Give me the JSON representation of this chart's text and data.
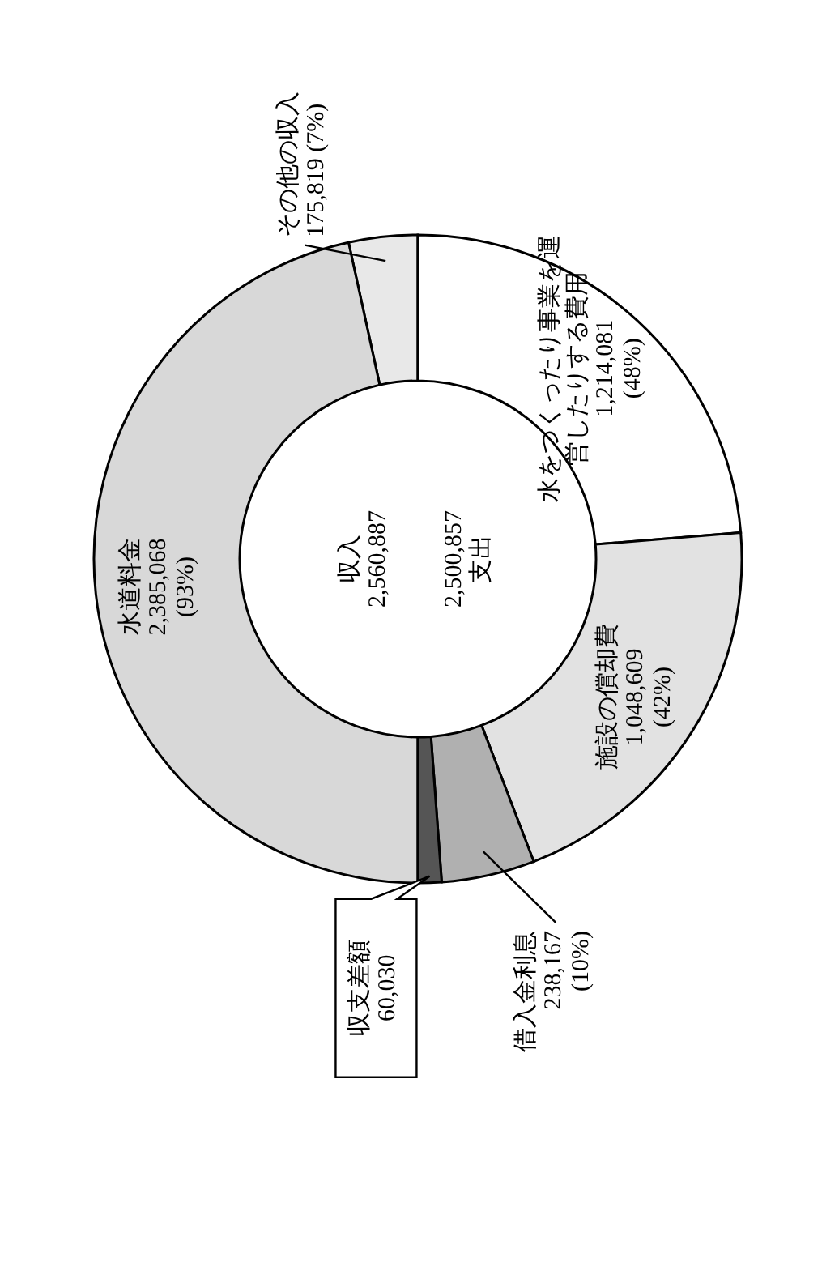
{
  "chart_data": [
    {
      "type": "donut",
      "title": "収入",
      "annotations": [
        "2,560,887"
      ],
      "categories": [
        "その他の収入",
        "水道料金"
      ],
      "values": [
        175819,
        2385068
      ],
      "value_labels": [
        "175,819 (7%)",
        "2,385,068\n(93%)"
      ],
      "colors": [
        "#e8e8e8",
        "#d8d8d8"
      ]
    },
    {
      "type": "donut",
      "title": "支出",
      "annotations": [
        "2,500,857"
      ],
      "categories": [
        "水をつくったり事業を運営したりする費用",
        "施設の償却費",
        "借入金利息",
        "収支差額"
      ],
      "values": [
        1214081,
        1048609,
        238167,
        60030
      ],
      "value_labels": [
        "1,214,081\n(48%)",
        "1,048,609\n(42%)",
        "238,167\n(10%)",
        "60,030"
      ],
      "colors": [
        "#ffffff",
        "#e2e2e2",
        "#b0b0b0",
        "#555555"
      ]
    }
  ]
}
